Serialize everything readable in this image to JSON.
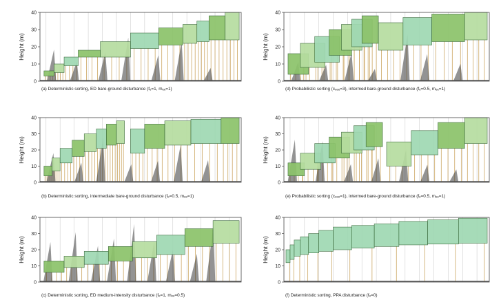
{
  "y_axis_label": "Height (m)",
  "colors": {
    "crown_green": "#8cc36a",
    "crown_green_light": "#b6dda0",
    "crown_teal": "#9fd8b2",
    "crown_dark": "#3a3a3a",
    "stem": "#c9a25a",
    "frame": "#444444",
    "gridline": "#cfcfcf"
  },
  "chart_data": [
    {
      "id": "a",
      "type": "bar",
      "title": "(a) Deterministic sorting, ED bare-ground disturbance (fₑ=1, mₑₑ=1)",
      "ylabel": "Height (m)",
      "ylim": [
        0,
        40
      ],
      "yticks": [
        "0",
        "10",
        "20",
        "30",
        "40"
      ],
      "style": "stepped",
      "layers": [
        {
          "x0": 0.02,
          "x1": 0.07,
          "top": 6,
          "bottom": 3
        },
        {
          "x0": 0.07,
          "x1": 0.12,
          "top": 10,
          "bottom": 5
        },
        {
          "x0": 0.12,
          "x1": 0.19,
          "top": 14,
          "bottom": 9
        },
        {
          "x0": 0.19,
          "x1": 0.3,
          "top": 18,
          "bottom": 14
        },
        {
          "x0": 0.3,
          "x1": 0.45,
          "top": 23,
          "bottom": 14
        },
        {
          "x0": 0.45,
          "x1": 0.59,
          "top": 28,
          "bottom": 19
        },
        {
          "x0": 0.59,
          "x1": 0.71,
          "top": 31,
          "bottom": 21
        },
        {
          "x0": 0.71,
          "x1": 0.78,
          "top": 33,
          "bottom": 22
        },
        {
          "x0": 0.78,
          "x1": 0.84,
          "top": 35,
          "bottom": 23
        },
        {
          "x0": 0.84,
          "x1": 0.92,
          "top": 38,
          "bottom": 24
        },
        {
          "x0": 0.92,
          "x1": 0.99,
          "top": 40,
          "bottom": 24
        }
      ]
    },
    {
      "id": "d",
      "type": "bar",
      "title": "(d) Probabilistic sorting (cₑₑₑ=3), intermed bare-ground disturbance (fₑ=0.5, mₑₑ=1)",
      "ylabel": "Height (m)",
      "ylim": [
        0,
        40
      ],
      "yticks": [
        "0",
        "10",
        "20",
        "30",
        "40"
      ],
      "style": "sawtooth",
      "layers": [
        {
          "x0": 0.02,
          "x1": 0.12,
          "top": 16,
          "bottom": 4
        },
        {
          "x0": 0.08,
          "x1": 0.2,
          "top": 22,
          "bottom": 8
        },
        {
          "x0": 0.15,
          "x1": 0.27,
          "top": 26,
          "bottom": 11
        },
        {
          "x0": 0.22,
          "x1": 0.33,
          "top": 30,
          "bottom": 15
        },
        {
          "x0": 0.28,
          "x1": 0.38,
          "top": 33,
          "bottom": 18
        },
        {
          "x0": 0.33,
          "x1": 0.43,
          "top": 36,
          "bottom": 20
        },
        {
          "x0": 0.38,
          "x1": 0.46,
          "top": 38,
          "bottom": 22
        },
        {
          "x0": 0.46,
          "x1": 0.58,
          "top": 34,
          "bottom": 18
        },
        {
          "x0": 0.58,
          "x1": 0.72,
          "top": 37,
          "bottom": 21
        },
        {
          "x0": 0.72,
          "x1": 0.88,
          "top": 39,
          "bottom": 23
        },
        {
          "x0": 0.88,
          "x1": 0.99,
          "top": 40,
          "bottom": 24
        }
      ]
    },
    {
      "id": "b",
      "type": "bar",
      "title": "(b) Deterministic sorting, intermediate bare-ground disturbance (fₑ=0.5, mₑₑ=1)",
      "ylabel": "Height (m)",
      "ylim": [
        0,
        40
      ],
      "yticks": [
        "0",
        "10",
        "20",
        "30",
        "40"
      ],
      "style": "stepped",
      "layers": [
        {
          "x0": 0.02,
          "x1": 0.06,
          "top": 10,
          "bottom": 4
        },
        {
          "x0": 0.06,
          "x1": 0.1,
          "top": 15,
          "bottom": 7
        },
        {
          "x0": 0.1,
          "x1": 0.16,
          "top": 21,
          "bottom": 12
        },
        {
          "x0": 0.16,
          "x1": 0.22,
          "top": 26,
          "bottom": 16
        },
        {
          "x0": 0.22,
          "x1": 0.28,
          "top": 30,
          "bottom": 19
        },
        {
          "x0": 0.28,
          "x1": 0.33,
          "top": 33,
          "bottom": 21
        },
        {
          "x0": 0.33,
          "x1": 0.38,
          "top": 36,
          "bottom": 23
        },
        {
          "x0": 0.38,
          "x1": 0.42,
          "top": 38,
          "bottom": 24
        },
        {
          "x0": 0.45,
          "x1": 0.52,
          "top": 33,
          "bottom": 18
        },
        {
          "x0": 0.52,
          "x1": 0.62,
          "top": 36,
          "bottom": 21
        },
        {
          "x0": 0.62,
          "x1": 0.75,
          "top": 38,
          "bottom": 23
        },
        {
          "x0": 0.75,
          "x1": 0.9,
          "top": 39,
          "bottom": 24
        },
        {
          "x0": 0.9,
          "x1": 0.99,
          "top": 40,
          "bottom": 24
        }
      ]
    },
    {
      "id": "e",
      "type": "bar",
      "title": "(e) Probabilistic sorting (cₑₑₑ=1), intermed bare-ground disturbance (fₑ=0.5, mₑₑ=1)",
      "ylabel": "Height (m)",
      "ylim": [
        0,
        40
      ],
      "yticks": [
        "0",
        "10",
        "20",
        "30",
        "40"
      ],
      "style": "sawtooth",
      "layers": [
        {
          "x0": 0.02,
          "x1": 0.1,
          "top": 12,
          "bottom": 4
        },
        {
          "x0": 0.08,
          "x1": 0.18,
          "top": 18,
          "bottom": 8
        },
        {
          "x0": 0.15,
          "x1": 0.25,
          "top": 24,
          "bottom": 12
        },
        {
          "x0": 0.22,
          "x1": 0.32,
          "top": 28,
          "bottom": 15
        },
        {
          "x0": 0.28,
          "x1": 0.38,
          "top": 31,
          "bottom": 18
        },
        {
          "x0": 0.34,
          "x1": 0.44,
          "top": 35,
          "bottom": 20
        },
        {
          "x0": 0.4,
          "x1": 0.48,
          "top": 37,
          "bottom": 22
        },
        {
          "x0": 0.5,
          "x1": 0.62,
          "top": 25,
          "bottom": 10
        },
        {
          "x0": 0.62,
          "x1": 0.75,
          "top": 32,
          "bottom": 17
        },
        {
          "x0": 0.75,
          "x1": 0.88,
          "top": 37,
          "bottom": 21
        },
        {
          "x0": 0.88,
          "x1": 0.99,
          "top": 40,
          "bottom": 24
        }
      ]
    },
    {
      "id": "c",
      "type": "bar",
      "title": "(c) Deterministic sorting, ED medium-intensity disturbance (fₑ=1, mₑₑ=0.5)",
      "ylabel": "Height (m)",
      "ylim": [
        0,
        40
      ],
      "yticks": [
        "0",
        "10",
        "20",
        "30",
        "40"
      ],
      "style": "spiky",
      "layers": [
        {
          "x0": 0.02,
          "x1": 0.12,
          "top": 13,
          "bottom": 6
        },
        {
          "x0": 0.12,
          "x1": 0.22,
          "top": 16,
          "bottom": 9
        },
        {
          "x0": 0.22,
          "x1": 0.34,
          "top": 19,
          "bottom": 11
        },
        {
          "x0": 0.34,
          "x1": 0.46,
          "top": 22,
          "bottom": 13
        },
        {
          "x0": 0.46,
          "x1": 0.58,
          "top": 25,
          "bottom": 15
        },
        {
          "x0": 0.58,
          "x1": 0.72,
          "top": 29,
          "bottom": 17
        },
        {
          "x0": 0.72,
          "x1": 0.86,
          "top": 33,
          "bottom": 22
        },
        {
          "x0": 0.86,
          "x1": 0.99,
          "top": 38,
          "bottom": 24
        }
      ]
    },
    {
      "id": "f",
      "type": "bar",
      "title": "(f) Deterministic sorting, PPA disturbance (fₑ=0)",
      "ylabel": "Height (m)",
      "ylim": [
        0,
        40
      ],
      "yticks": [
        "0",
        "10",
        "20",
        "30",
        "40"
      ],
      "style": "smooth",
      "layers": [
        {
          "x0": 0.01,
          "x1": 0.03,
          "top": 20,
          "bottom": 12
        },
        {
          "x0": 0.03,
          "x1": 0.05,
          "top": 23,
          "bottom": 14
        },
        {
          "x0": 0.05,
          "x1": 0.08,
          "top": 26,
          "bottom": 16
        },
        {
          "x0": 0.08,
          "x1": 0.12,
          "top": 28,
          "bottom": 17
        },
        {
          "x0": 0.12,
          "x1": 0.17,
          "top": 30,
          "bottom": 18
        },
        {
          "x0": 0.17,
          "x1": 0.24,
          "top": 32,
          "bottom": 19
        },
        {
          "x0": 0.24,
          "x1": 0.33,
          "top": 34,
          "bottom": 20
        },
        {
          "x0": 0.33,
          "x1": 0.44,
          "top": 35,
          "bottom": 21
        },
        {
          "x0": 0.44,
          "x1": 0.56,
          "top": 36,
          "bottom": 22
        },
        {
          "x0": 0.56,
          "x1": 0.7,
          "top": 37.5,
          "bottom": 23
        },
        {
          "x0": 0.7,
          "x1": 0.85,
          "top": 38.5,
          "bottom": 23.5
        },
        {
          "x0": 0.85,
          "x1": 0.99,
          "top": 39.5,
          "bottom": 24
        }
      ]
    }
  ]
}
